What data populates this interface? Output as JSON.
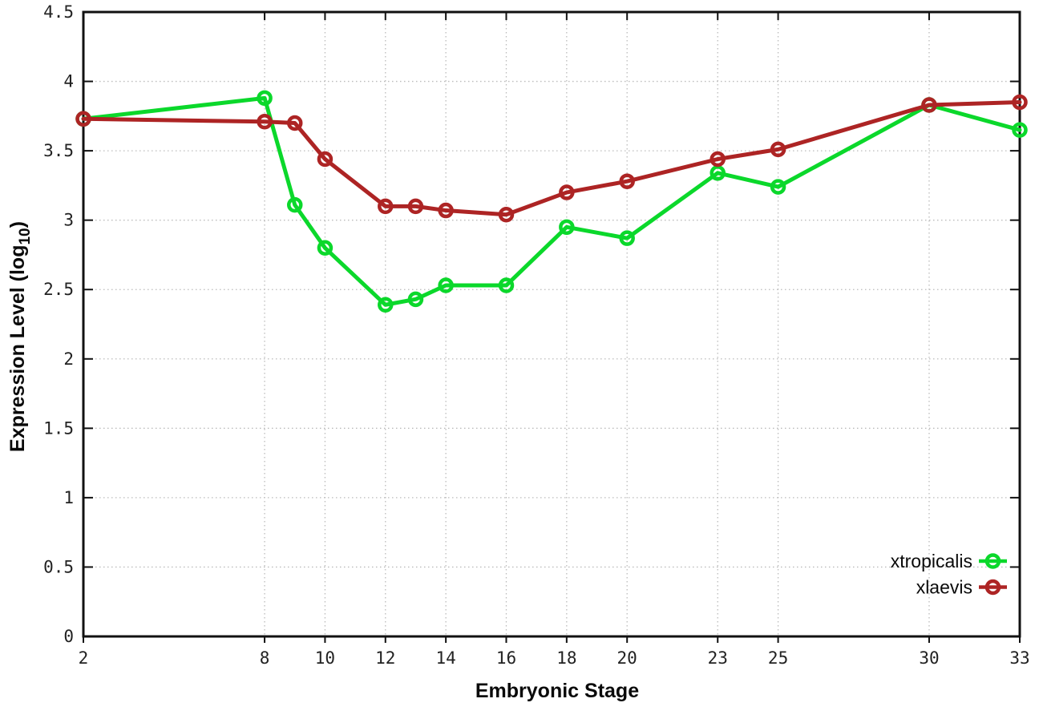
{
  "chart_data": {
    "type": "line",
    "title": "",
    "xlabel": "Embryonic Stage",
    "ylabel": "Expression Level (log10)",
    "ylabel_parts": {
      "pre": "Expression Level (log",
      "sub": "10",
      "post": ")"
    },
    "x": [
      2,
      8,
      9,
      10,
      12,
      13,
      14,
      16,
      18,
      20,
      23,
      25,
      30,
      33
    ],
    "xlim": [
      2,
      33
    ],
    "ylim": [
      0,
      4.5
    ],
    "xticks": [
      2,
      8,
      10,
      12,
      14,
      16,
      18,
      20,
      23,
      25,
      30,
      33
    ],
    "yticks": [
      0,
      0.5,
      1,
      1.5,
      2,
      2.5,
      3,
      3.5,
      4,
      4.5
    ],
    "grid": true,
    "legend_position": "bottom-right",
    "marker": "open-circle",
    "series": [
      {
        "name": "xtropicalis",
        "color": "#0bd82b",
        "values": [
          3.73,
          3.88,
          3.11,
          2.8,
          2.39,
          2.43,
          2.53,
          2.53,
          2.95,
          2.87,
          3.34,
          3.24,
          3.83,
          3.65
        ]
      },
      {
        "name": "xlaevis",
        "color": "#ad2424",
        "values": [
          3.73,
          3.71,
          3.7,
          3.44,
          3.1,
          3.1,
          3.07,
          3.04,
          3.2,
          3.28,
          3.44,
          3.51,
          3.83,
          3.85
        ]
      }
    ],
    "colors": {
      "grid": "#bbbbbb",
      "border": "#111111",
      "text": "#222222"
    }
  }
}
